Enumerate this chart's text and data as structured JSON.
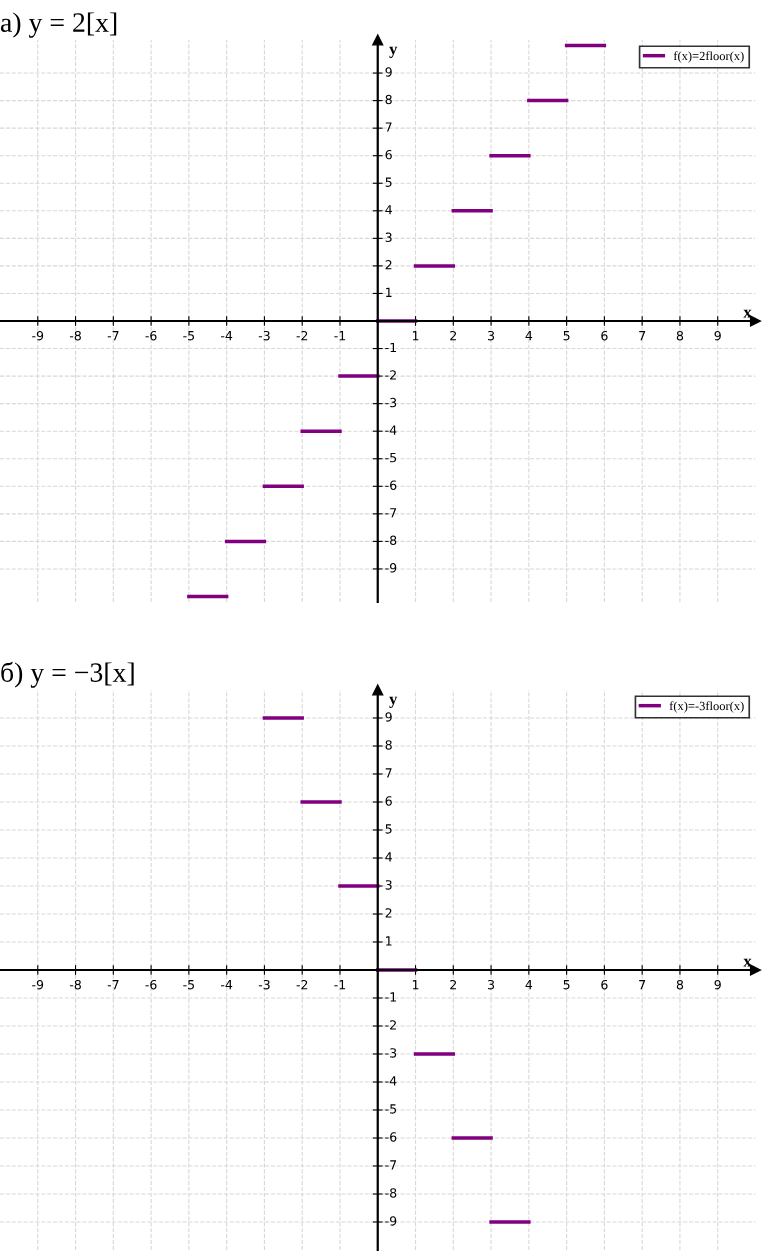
{
  "chart_data": [
    {
      "type": "line",
      "title": "а) y = 2[x]",
      "xlabel": "x",
      "ylabel": "y",
      "legend": "top right",
      "grid": true,
      "marker": "none",
      "line_style": "solid",
      "xlim": [
        -10,
        10
      ],
      "ylim": [
        -10.2,
        10.2
      ],
      "xticks": [
        -9,
        -8,
        -7,
        -6,
        -5,
        -4,
        -3,
        -2,
        -1,
        1,
        2,
        3,
        4,
        5,
        6,
        7,
        8,
        9
      ],
      "yticks": [
        -9,
        -8,
        -7,
        -6,
        -5,
        -4,
        -3,
        -2,
        -1,
        1,
        2,
        3,
        4,
        5,
        6,
        7,
        8,
        9
      ],
      "series": [
        {
          "name": "f(x)=2floor(x)",
          "color": "#800080",
          "x": [
            -5,
            -4,
            null,
            -4,
            -3,
            null,
            -3,
            -2,
            null,
            -2,
            -1,
            null,
            -1,
            0,
            null,
            0,
            1,
            null,
            1,
            2,
            null,
            2,
            3,
            null,
            3,
            4,
            null,
            4,
            5,
            null,
            5,
            6
          ],
          "values": [
            -10,
            -10,
            null,
            -8,
            -8,
            null,
            -6,
            -6,
            null,
            -4,
            -4,
            null,
            -2,
            -2,
            null,
            0,
            0,
            null,
            2,
            2,
            null,
            4,
            4,
            null,
            6,
            6,
            null,
            8,
            8,
            null,
            10,
            10
          ]
        }
      ]
    },
    {
      "type": "line",
      "title": "б) y = −3[x]",
      "xlabel": "x",
      "ylabel": "y",
      "legend": "top right",
      "grid": true,
      "marker": "none",
      "line_style": "solid",
      "xlim": [
        -10,
        10
      ],
      "ylim": [
        -10,
        10
      ],
      "xticks": [
        -9,
        -8,
        -7,
        -6,
        -5,
        -4,
        -3,
        -2,
        -1,
        1,
        2,
        3,
        4,
        5,
        6,
        7,
        8,
        9
      ],
      "yticks": [
        -9,
        -8,
        -7,
        -6,
        -5,
        -4,
        -3,
        -2,
        -1,
        1,
        2,
        3,
        4,
        5,
        6,
        7,
        8,
        9
      ],
      "series": [
        {
          "name": "f(x)=-3floor(x)",
          "color": "#800080",
          "x": [
            -3,
            -2,
            null,
            -2,
            -1,
            null,
            -1,
            0,
            null,
            0,
            1,
            null,
            1,
            2,
            null,
            2,
            3,
            null,
            3,
            4
          ],
          "values": [
            9,
            9,
            null,
            6,
            6,
            null,
            3,
            3,
            null,
            0,
            0,
            null,
            -3,
            -3,
            null,
            -6,
            -6,
            null,
            -9,
            -9
          ]
        }
      ]
    }
  ]
}
